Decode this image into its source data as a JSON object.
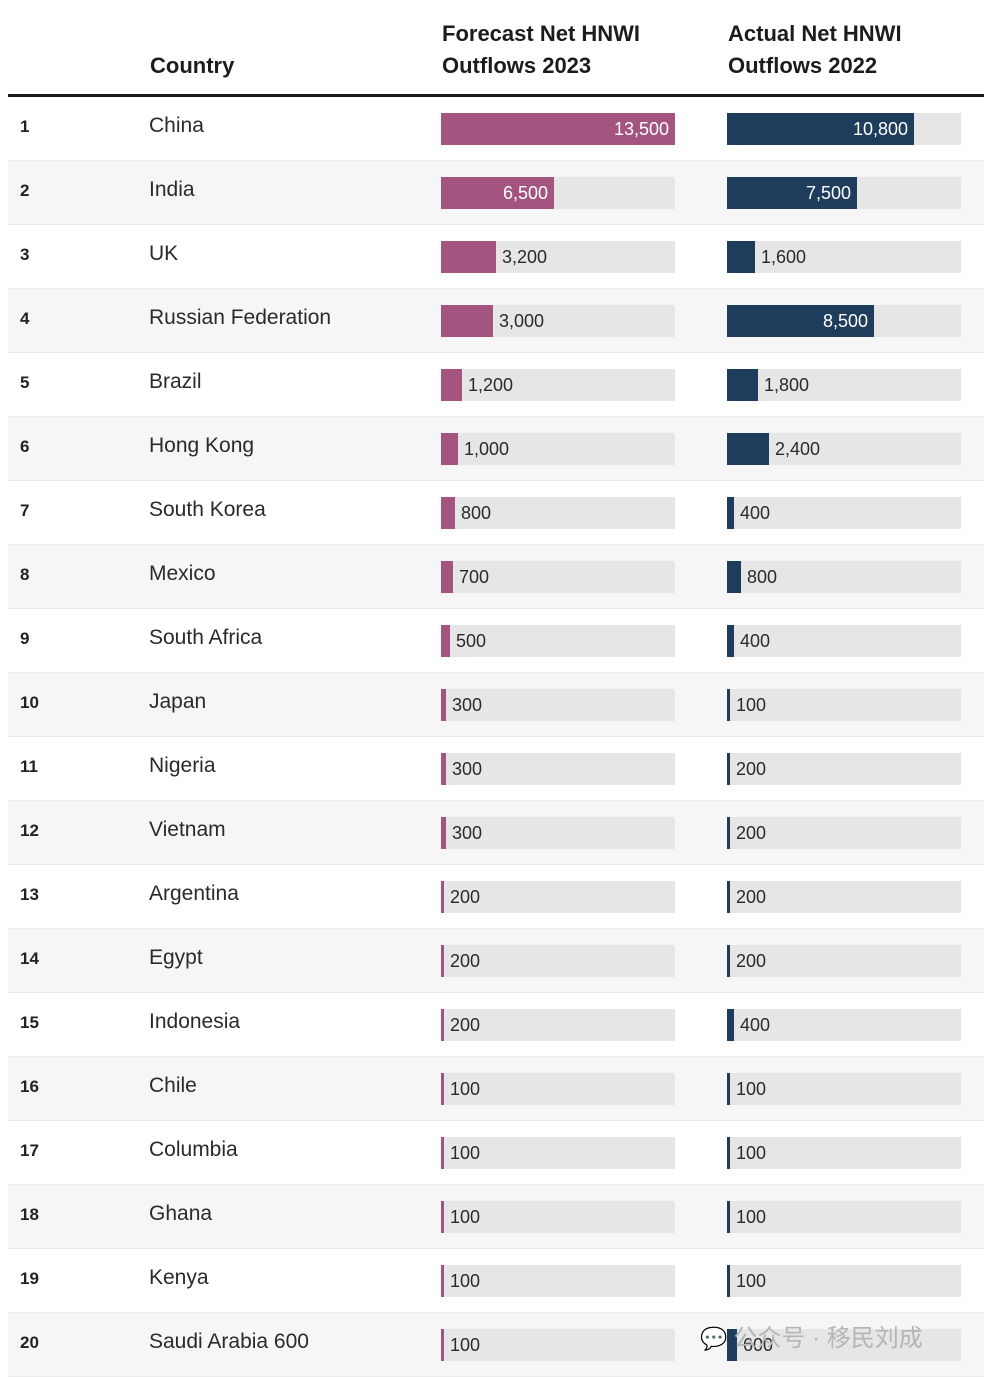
{
  "header": {
    "country": "Country",
    "forecast": "Forecast Net HNWI\nOutflows 2023",
    "actual": "Actual Net HNWI\nOutflows 2022"
  },
  "colors": {
    "forecast_bar": "#a35580",
    "actual_bar": "#1e3d5c",
    "track": "#e6e6e6"
  },
  "chart_data": {
    "type": "bar",
    "xlim": [
      0,
      13500
    ],
    "categories": [
      "China",
      "India",
      "UK",
      "Russian Federation",
      "Brazil",
      "Hong Kong",
      "South Korea",
      "Mexico",
      "South Africa",
      "Japan",
      "Nigeria",
      "Vietnam",
      "Argentina",
      "Egypt",
      "Indonesia",
      "Chile",
      "Columbia",
      "Ghana",
      "Kenya",
      "Saudi Arabia 600"
    ],
    "ranks": [
      "1",
      "2",
      "3",
      "4",
      "5",
      "6",
      "7",
      "8",
      "9",
      "10",
      "11",
      "12",
      "13",
      "14",
      "15",
      "16",
      "17",
      "18",
      "19",
      "20"
    ],
    "series": [
      {
        "name": "Forecast Net HNWI Outflows 2023",
        "values": [
          13500,
          6500,
          3200,
          3000,
          1200,
          1000,
          800,
          700,
          500,
          300,
          300,
          300,
          200,
          200,
          200,
          100,
          100,
          100,
          100,
          100
        ],
        "labels": [
          "13,500",
          "6,500",
          "3,200",
          "3,000",
          "1,200",
          "1,000",
          "800",
          "700",
          "500",
          "300",
          "300",
          "300",
          "200",
          "200",
          "200",
          "100",
          "100",
          "100",
          "100",
          "100"
        ]
      },
      {
        "name": "Actual Net HNWI Outflows 2022",
        "values": [
          10800,
          7500,
          1600,
          8500,
          1800,
          2400,
          400,
          800,
          400,
          100,
          200,
          200,
          200,
          200,
          400,
          100,
          100,
          100,
          100,
          600
        ],
        "labels": [
          "10,800",
          "7,500",
          "1,600",
          "8,500",
          "1,800",
          "2,400",
          "400",
          "800",
          "400",
          "100",
          "200",
          "200",
          "200",
          "200",
          "400",
          "100",
          "100",
          "100",
          "100",
          "600"
        ]
      }
    ]
  },
  "watermark": {
    "icon": "wechat-icon",
    "text": "公众号 · 移民刘成"
  }
}
